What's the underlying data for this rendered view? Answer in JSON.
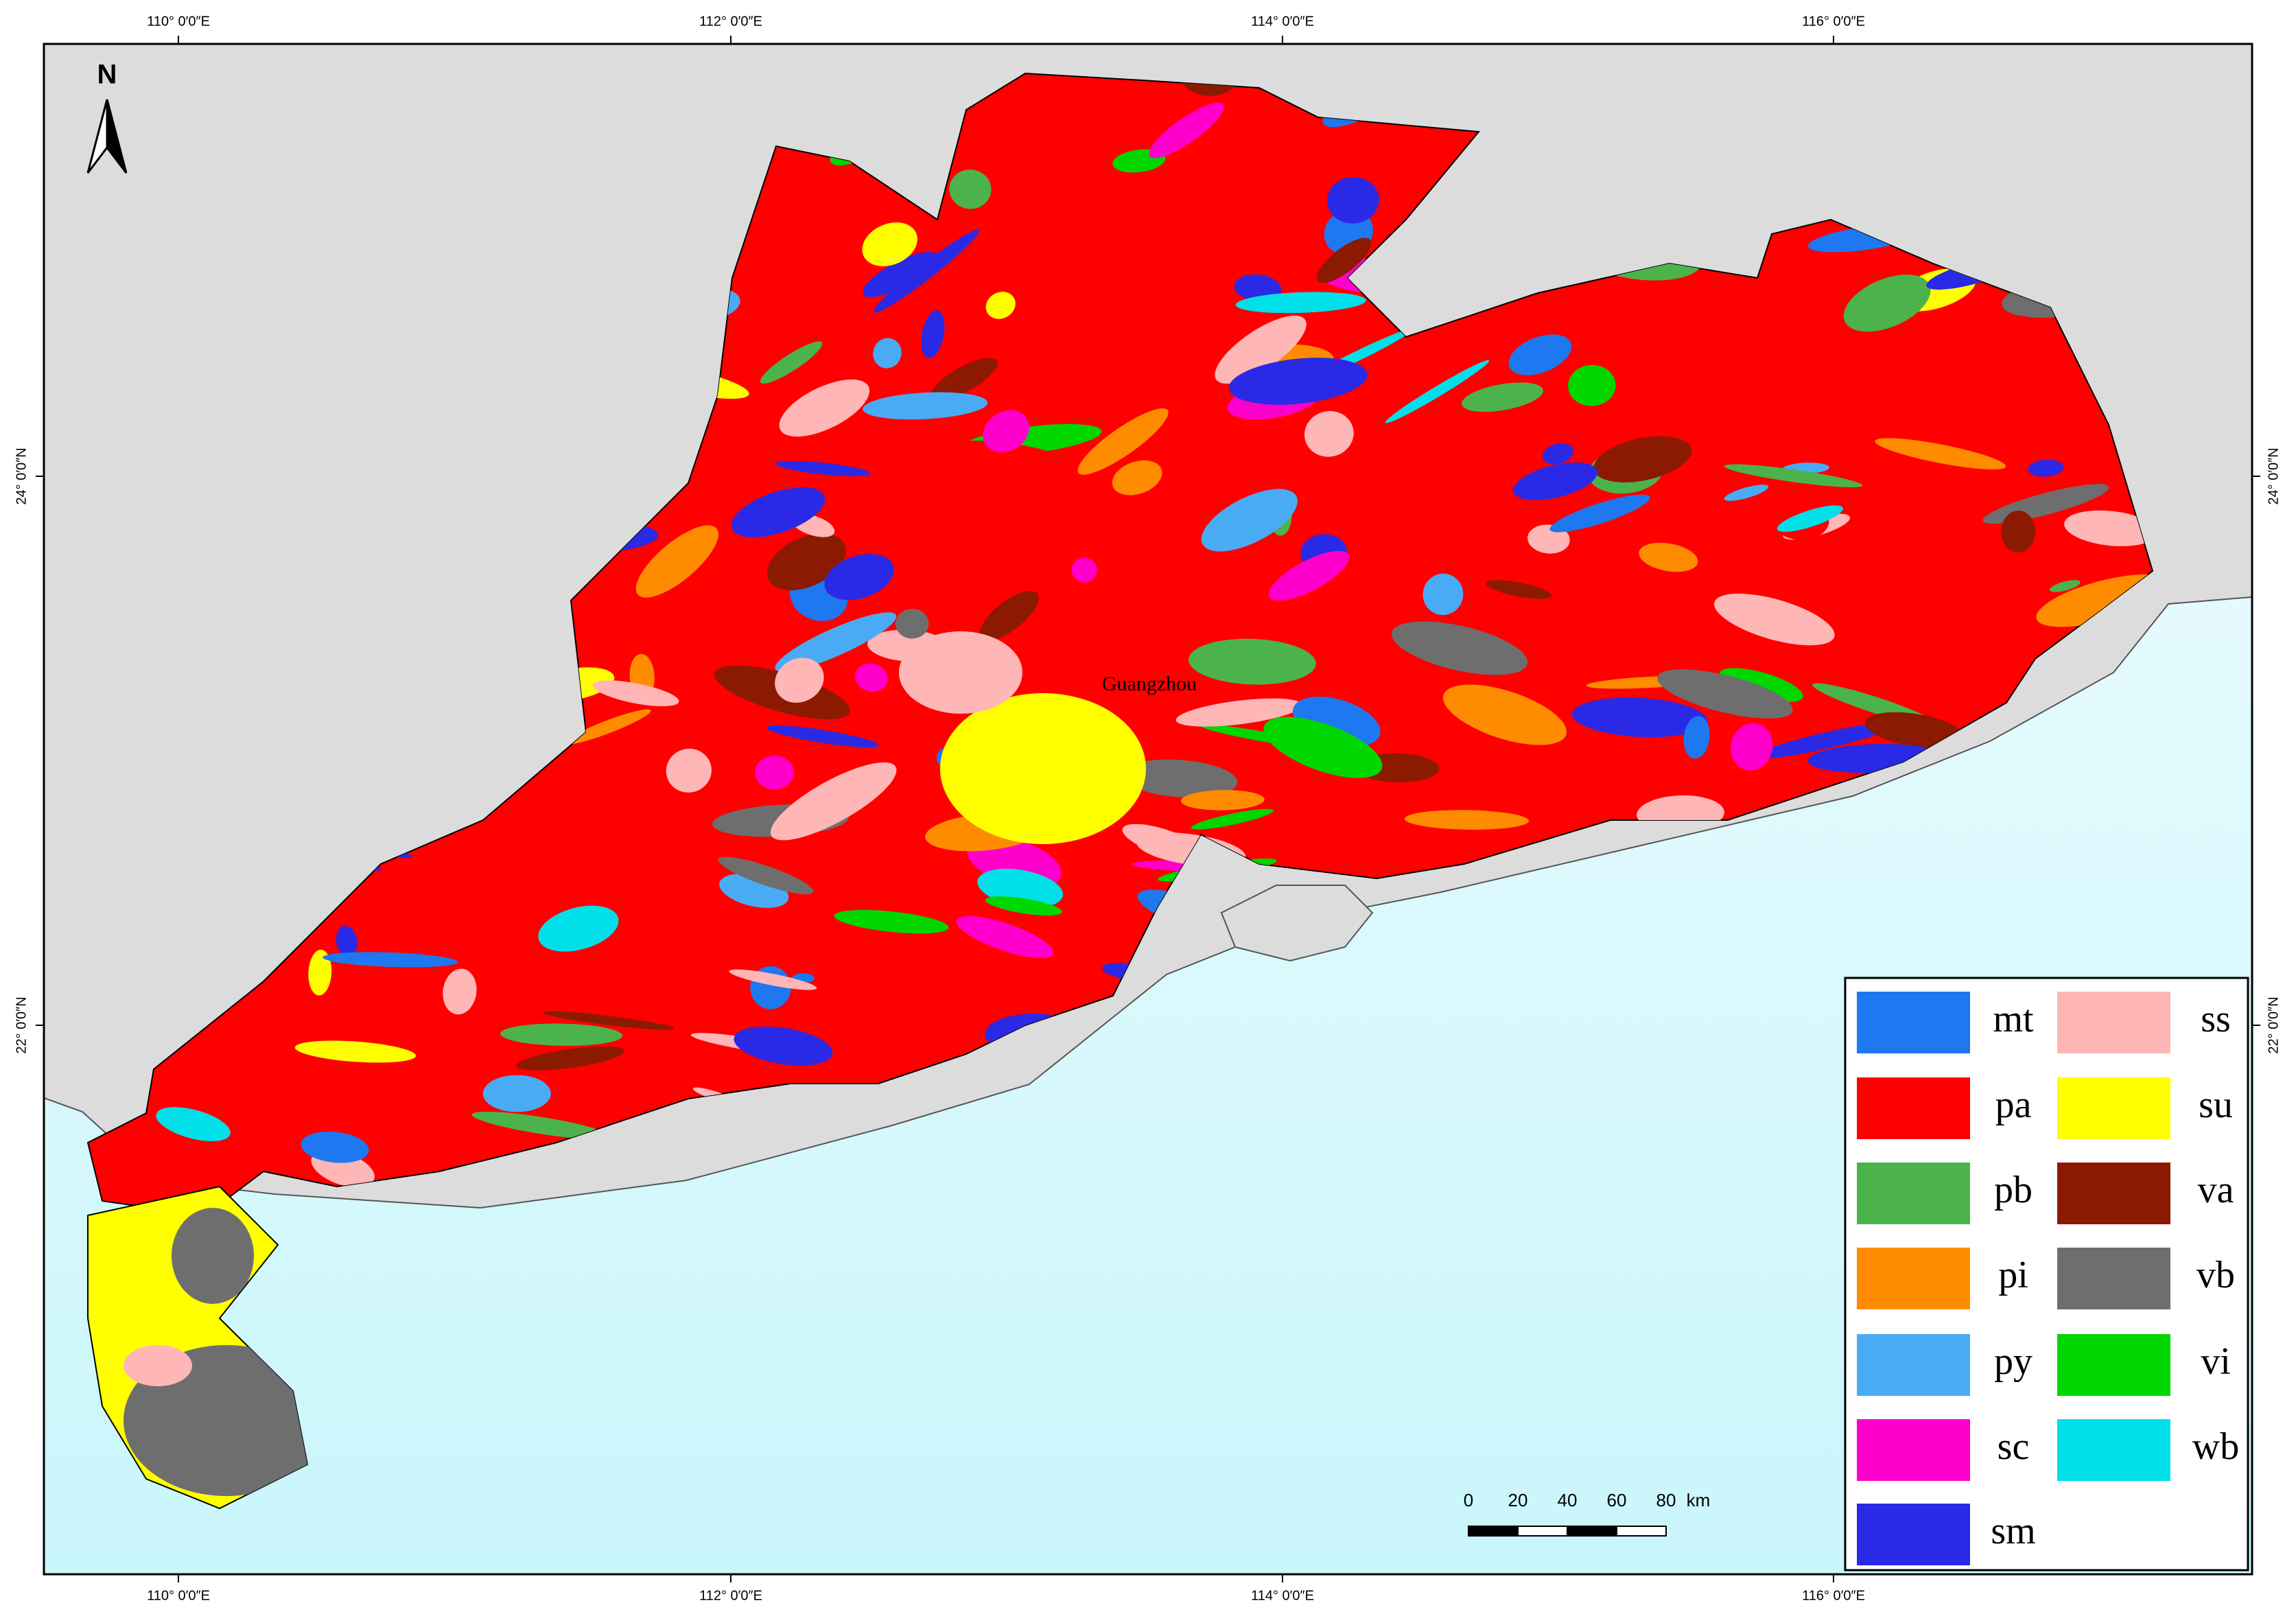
{
  "north_arrow": "N",
  "graticule": {
    "top": [
      "110° 0′0″E",
      "112° 0′0″E",
      "114° 0′0″E",
      "116° 0′0″E"
    ],
    "bottom": [
      "110° 0′0″E",
      "112° 0′0″E",
      "114° 0′0″E",
      "116° 0′0″E"
    ],
    "left": [
      "24° 0′0″N",
      "22° 0′0″N"
    ],
    "right": [
      "24° 0′0″N",
      "22° 0′0″N"
    ]
  },
  "city_label": "Guangzhou",
  "scale_bar": {
    "labels": [
      "0",
      "20",
      "40",
      "60",
      "80"
    ],
    "unit": "km"
  },
  "legend": [
    {
      "code": "mt",
      "color": "#1e78f0"
    },
    {
      "code": "pa",
      "color": "#ff0000"
    },
    {
      "code": "pb",
      "color": "#4cb34c"
    },
    {
      "code": "pi",
      "color": "#ff8c00"
    },
    {
      "code": "py",
      "color": "#4aabf5"
    },
    {
      "code": "sc",
      "color": "#ff00cc"
    },
    {
      "code": "sm",
      "color": "#2a2ae6"
    },
    {
      "code": "ss",
      "color": "#ffb6b6"
    },
    {
      "code": "su",
      "color": "#ffff00"
    },
    {
      "code": "va",
      "color": "#8b1a00"
    },
    {
      "code": "vb",
      "color": "#6e6e6e"
    },
    {
      "code": "vi",
      "color": "#00d600"
    },
    {
      "code": "wb",
      "color": "#00e0e8"
    }
  ]
}
